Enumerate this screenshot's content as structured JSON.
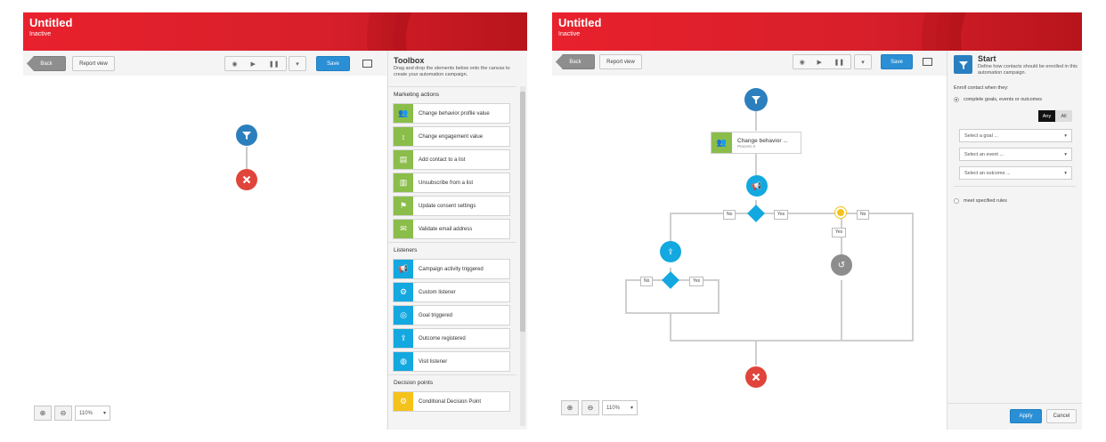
{
  "panel1": {
    "header": {
      "title": "Untitled",
      "status": "Inactive"
    },
    "toolbar": {
      "back": "Back",
      "report_view": "Report view",
      "save": "Save"
    },
    "toolbox": {
      "title": "Toolbox",
      "description": "Drag and drop the elements below onto the canvas to create your automation campaign.",
      "sections": [
        {
          "name": "Marketing actions",
          "items": [
            {
              "label": "Change behavior profile value",
              "icon": "people-icon",
              "color": "#8bbd4a"
            },
            {
              "label": "Change engagement value",
              "icon": "up-down-arrows-icon",
              "color": "#8bbd4a"
            },
            {
              "label": "Add contact to a list",
              "icon": "list-add-icon",
              "color": "#8bbd4a"
            },
            {
              "label": "Unsubscribe from a list",
              "icon": "list-remove-icon",
              "color": "#8bbd4a"
            },
            {
              "label": "Update consent settings",
              "icon": "flag-icon",
              "color": "#8bbd4a"
            },
            {
              "label": "Validate email address",
              "icon": "email-check-icon",
              "color": "#8bbd4a"
            }
          ]
        },
        {
          "name": "Listeners",
          "items": [
            {
              "label": "Campaign activity triggered",
              "icon": "megaphone-icon",
              "color": "#13a8e0"
            },
            {
              "label": "Custom listener",
              "icon": "gear-icon",
              "color": "#13a8e0"
            },
            {
              "label": "Goal triggered",
              "icon": "target-icon",
              "color": "#13a8e0"
            },
            {
              "label": "Outcome registered",
              "icon": "upload-tray-icon",
              "color": "#13a8e0"
            },
            {
              "label": "Visit listener",
              "icon": "globe-icon",
              "color": "#13a8e0"
            }
          ]
        },
        {
          "name": "Decision points",
          "items": [
            {
              "label": "Conditional Decision Point",
              "icon": "gear-icon",
              "color": "#f4c21a"
            }
          ]
        }
      ]
    },
    "zoom": {
      "level": "110%"
    }
  },
  "panel2": {
    "header": {
      "title": "Untitled",
      "status": "Inactive"
    },
    "toolbar": {
      "back": "Back",
      "report_view": "Report view",
      "save": "Save"
    },
    "flow": {
      "action_title": "Change behavior ...",
      "action_sub": "Process 0",
      "no": "No",
      "yes": "Yes"
    },
    "side": {
      "title": "Start",
      "description": "Define how contacts should be enrolled in this automation campaign.",
      "enroll_label": "Enroll contact when they:",
      "option1": "complete goals, events or outcomes",
      "any": "Any",
      "all": "All",
      "goal": "Select a goal ...",
      "event": "Select an event ...",
      "outcome": "Select an outcome ...",
      "option2": "meet specified rules",
      "apply": "Apply",
      "cancel": "Cancel"
    },
    "zoom": {
      "level": "110%"
    }
  }
}
